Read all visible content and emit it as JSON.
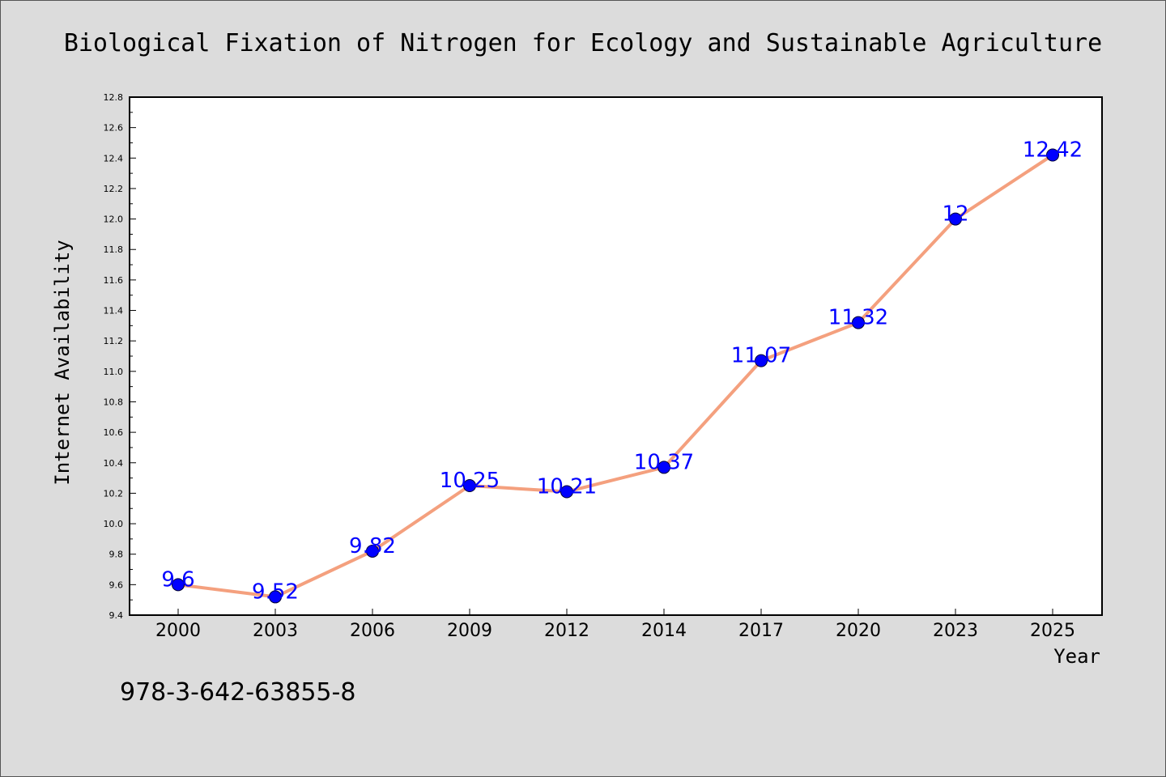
{
  "chart_data": {
    "type": "line",
    "title": "Biological Fixation of Nitrogen for Ecology and Sustainable Agriculture",
    "xlabel": "Year",
    "ylabel": "Internet Availability",
    "categories": [
      "2000",
      "2003",
      "2006",
      "2009",
      "2012",
      "2014",
      "2017",
      "2020",
      "2023",
      "2025"
    ],
    "series": [
      {
        "values": [
          9.6,
          9.52,
          9.82,
          10.25,
          10.21,
          10.37,
          11.07,
          11.32,
          12,
          12.42
        ],
        "data_labels": [
          "9.6",
          "9.52",
          "9.82",
          "10.25",
          "10.21",
          "10.37",
          "11.07",
          "11.32",
          "12",
          "12.42"
        ],
        "line_color": "#f4a07e",
        "marker_color": "#0000ff"
      }
    ],
    "ylim": [
      9.4,
      12.8
    ],
    "yticks": [
      "9.4",
      "9.6",
      "9.8",
      "10.0",
      "10.2",
      "10.4",
      "10.6",
      "10.8",
      "11.0",
      "11.2",
      "11.4",
      "11.6",
      "11.8",
      "12.0",
      "12.2",
      "12.4",
      "12.6",
      "12.8"
    ],
    "grid": false,
    "legend": "none"
  },
  "footer": {
    "isbn": "978-3-642-63855-8"
  },
  "colors": {
    "background": "#dcdcdc",
    "plot_background": "#ffffff",
    "data_label": "#0000ff"
  }
}
